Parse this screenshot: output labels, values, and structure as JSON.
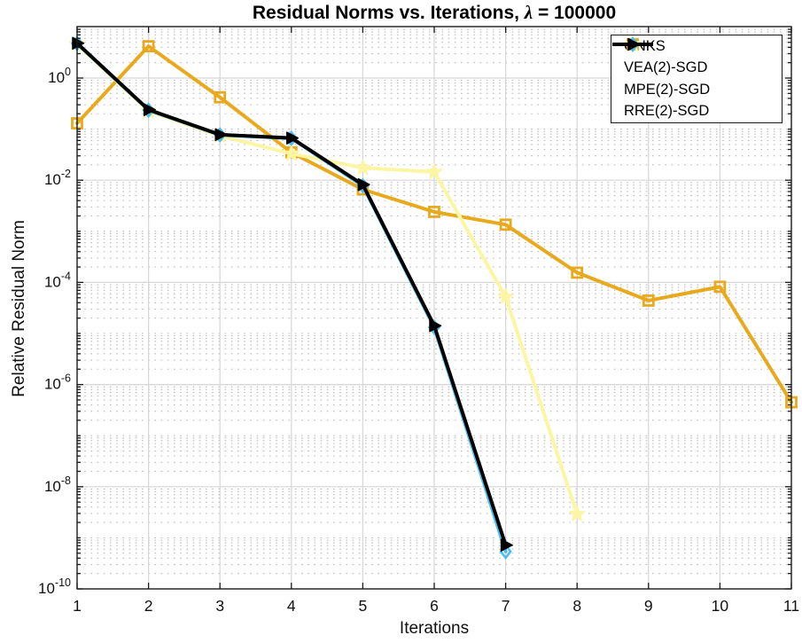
{
  "figure": {
    "title": "Residual Norms vs. Iterations, λ = 100000",
    "xlabel": "Iterations",
    "ylabel": "Relative Residual Norm"
  },
  "chart_data": {
    "type": "line",
    "title": "Residual Norms vs. Iterations, λ = 100000",
    "xlabel": "Iterations",
    "ylabel": "Relative Residual Norm",
    "x_ticks": [
      1,
      2,
      3,
      4,
      5,
      6,
      7,
      8,
      9,
      10,
      11
    ],
    "y_tick_exponents": [
      0,
      -2,
      -4,
      -6,
      -8,
      -10
    ],
    "xlim": [
      1,
      11
    ],
    "ylim": [
      1e-10,
      10.2
    ],
    "yscale": "log",
    "grid": true,
    "minor_grid": true,
    "legend_position": "top-right",
    "series": [
      {
        "name": "GNKS",
        "color": "#E8A91D",
        "marker": "square",
        "x": [
          1,
          2,
          3,
          4,
          5,
          6,
          7,
          8,
          9,
          10,
          11
        ],
        "y": [
          0.13,
          4.2,
          0.42,
          0.035,
          0.0066,
          0.0024,
          0.00135,
          0.000155,
          4.4e-05,
          8.2e-05,
          4.5e-07
        ]
      },
      {
        "name": "VEA(2)-SGD",
        "color": "#FBF5A4",
        "marker": "pentagram",
        "x": [
          1,
          2,
          3,
          4,
          5,
          6,
          7,
          8
        ],
        "y": [
          4.6,
          0.225,
          0.074,
          0.033,
          0.0175,
          0.0145,
          5.2e-05,
          2.9e-09
        ]
      },
      {
        "name": "MPE(2)-SGD",
        "color": "#4DBEEE",
        "marker": "diamond",
        "x": [
          1,
          2,
          3,
          4,
          5,
          6,
          7
        ],
        "y": [
          4.75,
          0.235,
          0.077,
          0.066,
          0.0078,
          1.32e-05,
          5.4e-10
        ]
      },
      {
        "name": "RRE(2)-SGD",
        "color": "#000000",
        "marker": "triangle-right",
        "x": [
          1,
          2,
          3,
          4,
          5,
          6,
          7
        ],
        "y": [
          4.8,
          0.24,
          0.078,
          0.067,
          0.0082,
          1.42e-05,
          7.2e-10
        ]
      }
    ]
  }
}
